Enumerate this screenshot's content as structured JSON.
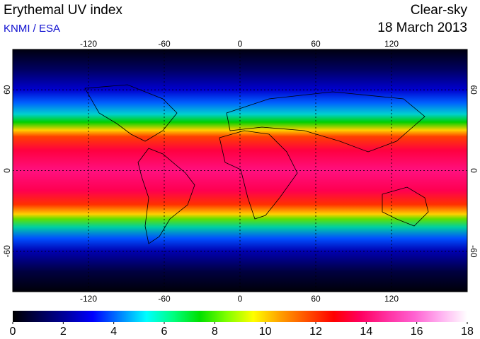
{
  "header": {
    "title": "Erythemal UV index",
    "source": "KNMI / ESA",
    "condition": "Clear-sky",
    "date": "18 March 2013"
  },
  "map": {
    "xlim": [
      -180,
      180
    ],
    "ylim": [
      -90,
      90
    ],
    "xticks": [
      -120,
      -60,
      0,
      60,
      120
    ],
    "yticks": [
      -60,
      0,
      60
    ],
    "grid": true
  },
  "colorbar": {
    "lim": [
      0,
      18
    ],
    "ticks": [
      0,
      2,
      4,
      6,
      8,
      10,
      12,
      14,
      16,
      18
    ],
    "colors": [
      "#000000",
      "#000050",
      "#0000a0",
      "#0000ff",
      "#0080ff",
      "#00ffff",
      "#00ff80",
      "#00e000",
      "#80ff00",
      "#ffff00",
      "#ffa000",
      "#ff5000",
      "#ff0000",
      "#ff0060",
      "#ff30a0",
      "#ff60d0",
      "#ffb0f0",
      "#ffffff"
    ]
  }
}
